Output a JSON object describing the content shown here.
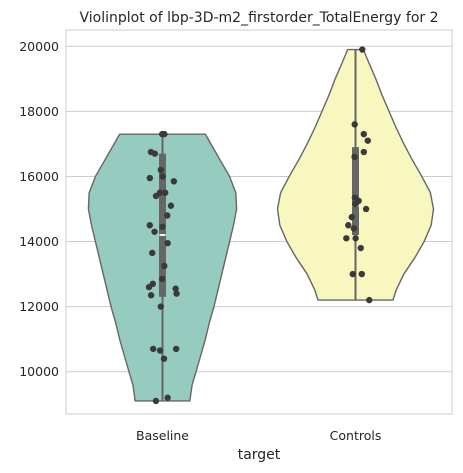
{
  "chart_data": {
    "type": "violin",
    "title": "Violinplot of lbp-3D-m2_firstorder_TotalEnergy for 2",
    "xlabel": "target",
    "ylabel": "",
    "categories": [
      "Baseline",
      "Controls"
    ],
    "ylim": [
      8700,
      20500
    ],
    "yticks": [
      10000,
      12000,
      14000,
      16000,
      18000,
      20000
    ],
    "ytick_labels": [
      "10000",
      "12000",
      "14000",
      "16000",
      "18000",
      "20000"
    ],
    "grid": true,
    "colors": {
      "Baseline": "#96cbbf",
      "Controls": "#f7f7bf",
      "outline": "#666666",
      "points": "#3a3a3a",
      "grid": "#cccccc"
    },
    "series": [
      {
        "name": "Baseline",
        "range": [
          9100,
          17300
        ],
        "quartiles": [
          12300,
          14200,
          16700
        ],
        "density": [
          [
            9100,
            0.35
          ],
          [
            9600,
            0.38
          ],
          [
            10000,
            0.43
          ],
          [
            10500,
            0.49
          ],
          [
            11000,
            0.55
          ],
          [
            11500,
            0.6
          ],
          [
            12000,
            0.66
          ],
          [
            12500,
            0.71
          ],
          [
            13000,
            0.76
          ],
          [
            13500,
            0.81
          ],
          [
            14000,
            0.86
          ],
          [
            14500,
            0.91
          ],
          [
            15000,
            0.95
          ],
          [
            15500,
            0.94
          ],
          [
            16000,
            0.86
          ],
          [
            16500,
            0.74
          ],
          [
            17000,
            0.62
          ],
          [
            17300,
            0.55
          ]
        ],
        "points": [
          17300,
          17300,
          16750,
          16700,
          16200,
          16000,
          15950,
          15850,
          15500,
          15500,
          15400,
          15100,
          14800,
          14500,
          14450,
          14300,
          13950,
          13650,
          13250,
          12850,
          12700,
          12600,
          12550,
          12400,
          12350,
          12000,
          10700,
          10700,
          10650,
          10400,
          9200,
          9100
        ]
      },
      {
        "name": "Controls",
        "range": [
          12200,
          19900
        ],
        "quartiles": [
          14200,
          15100,
          16900
        ],
        "density": [
          [
            12200,
            0.48
          ],
          [
            12500,
            0.52
          ],
          [
            13000,
            0.62
          ],
          [
            13500,
            0.76
          ],
          [
            14000,
            0.88
          ],
          [
            14500,
            0.97
          ],
          [
            15000,
            1.0
          ],
          [
            15500,
            0.96
          ],
          [
            16000,
            0.85
          ],
          [
            16500,
            0.73
          ],
          [
            17000,
            0.62
          ],
          [
            17500,
            0.52
          ],
          [
            18000,
            0.43
          ],
          [
            18500,
            0.34
          ],
          [
            19000,
            0.26
          ],
          [
            19500,
            0.17
          ],
          [
            19900,
            0.1
          ]
        ],
        "points": [
          19900,
          17600,
          17300,
          17100,
          16750,
          16600,
          15350,
          15250,
          15150,
          15000,
          14750,
          14500,
          14400,
          14100,
          14100,
          13800,
          13000,
          13000,
          12200
        ]
      }
    ]
  }
}
